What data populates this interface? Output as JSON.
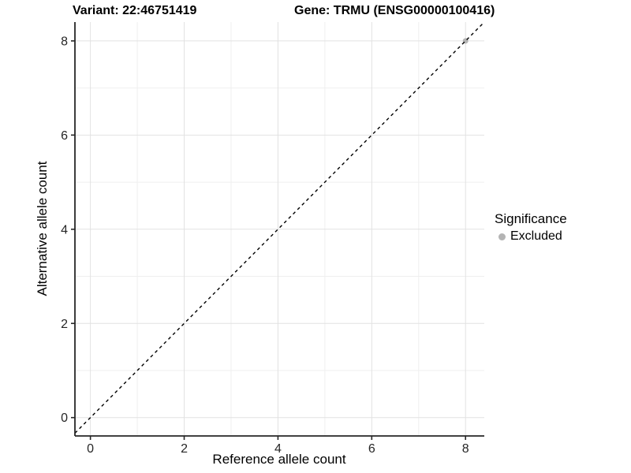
{
  "header": {
    "variant_label": "Variant: 22:46751419",
    "gene_label": "Gene: TRMU (ENSG00000100416)"
  },
  "legend": {
    "title": "Significance",
    "items": [
      {
        "label": "Excluded",
        "color": "#b4b4b4"
      }
    ]
  },
  "chart_data": {
    "type": "scatter",
    "title": "Variant: 22:46751419   Gene: TRMU (ENSG00000100416)",
    "xlabel": "Reference allele count",
    "ylabel": "Alternative allele count",
    "xlim": [
      -0.33,
      8.4
    ],
    "ylim": [
      -0.39,
      8.4
    ],
    "x_ticks": [
      0,
      2,
      4,
      6,
      8
    ],
    "y_ticks": [
      0,
      2,
      4,
      6,
      8
    ],
    "x_minor_ticks": [
      1,
      3,
      5,
      7
    ],
    "y_minor_ticks": [
      1,
      3,
      5,
      7
    ],
    "grid": true,
    "legend_position": "right",
    "series": [
      {
        "name": "Excluded",
        "color": "#b4b4b4",
        "points": [
          [
            8,
            8
          ]
        ]
      }
    ],
    "reference_line": {
      "equation": "y = x",
      "style": "dashed",
      "color": "#000000"
    }
  },
  "colors": {
    "background": "#ffffff",
    "major_grid": "#e2e2e2",
    "minor_grid": "#efefef",
    "axis": "#262626",
    "tick_label": "#262626",
    "dashed_line": "#000000",
    "point": "#b4b4b4"
  }
}
